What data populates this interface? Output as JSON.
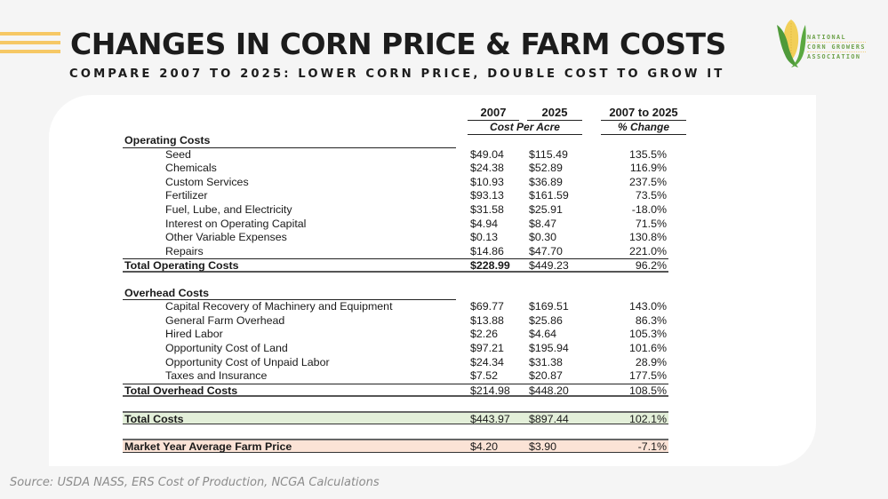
{
  "header": {
    "title": "CHANGES IN CORN PRICE & FARM COSTS",
    "subtitle": "COMPARE 2007 TO 2025: LOWER CORN PRICE, DOUBLE COST TO GROW IT",
    "logo": {
      "icon": "corn-cob-icon",
      "lines": [
        "NATIONAL",
        "CORN GROWERS",
        "ASSOCIATION"
      ],
      "colors": {
        "green": "#4f9a3a",
        "yellow": "#f2cf58"
      }
    },
    "accent_color": "#f6c865"
  },
  "table": {
    "col_headers": {
      "y2007": "2007",
      "y2025": "2025",
      "change_range": "2007 to 2025",
      "cost_per_acre": "Cost Per Acre",
      "pct_change": "% Change"
    },
    "operating": {
      "title": "Operating Costs",
      "rows": [
        {
          "label": "Seed",
          "v2007": "$49.04",
          "v2025": "$115.49",
          "pct": "135.5%"
        },
        {
          "label": "Chemicals",
          "v2007": "$24.38",
          "v2025": "$52.89",
          "pct": "116.9%"
        },
        {
          "label": "Custom Services",
          "v2007": "$10.93",
          "v2025": "$36.89",
          "pct": "237.5%"
        },
        {
          "label": "Fertilizer",
          "v2007": "$93.13",
          "v2025": "$161.59",
          "pct": "73.5%"
        },
        {
          "label": "Fuel, Lube, and Electricity",
          "v2007": "$31.58",
          "v2025": "$25.91",
          "pct": "-18.0%"
        },
        {
          "label": "Interest on Operating Capital",
          "v2007": "$4.94",
          "v2025": "$8.47",
          "pct": "71.5%"
        },
        {
          "label": "Other Variable Expenses",
          "v2007": "$0.13",
          "v2025": "$0.30",
          "pct": "130.8%"
        },
        {
          "label": "Repairs",
          "v2007": "$14.86",
          "v2025": "$47.70",
          "pct": "221.0%"
        }
      ],
      "total": {
        "label": "Total Operating Costs",
        "v2007": "$228.99",
        "v2025": "$449.23",
        "pct": "96.2%"
      }
    },
    "overhead": {
      "title": "Overhead Costs",
      "rows": [
        {
          "label": "Capital Recovery of Machinery and Equipment",
          "v2007": "$69.77",
          "v2025": "$169.51",
          "pct": "143.0%"
        },
        {
          "label": "General Farm Overhead",
          "v2007": "$13.88",
          "v2025": "$25.86",
          "pct": "86.3%"
        },
        {
          "label": "Hired Labor",
          "v2007": "$2.26",
          "v2025": "$4.64",
          "pct": "105.3%"
        },
        {
          "label": "Opportunity Cost of Land",
          "v2007": "$97.21",
          "v2025": "$195.94",
          "pct": "101.6%"
        },
        {
          "label": "Opportunity Cost of Unpaid Labor",
          "v2007": "$24.34",
          "v2025": "$31.38",
          "pct": "28.9%"
        },
        {
          "label": "Taxes and Insurance",
          "v2007": "$7.52",
          "v2025": "$20.87",
          "pct": "177.5%"
        }
      ],
      "total": {
        "label": "Total Overhead Costs",
        "v2007": "$214.98",
        "v2025": "$448.20",
        "pct": "108.5%"
      }
    },
    "total_costs": {
      "label": "Total Costs",
      "v2007": "$443.97",
      "v2025": "$897.44",
      "pct": "102.1%",
      "bg": "#e3efd9"
    },
    "farm_price": {
      "label": "Market Year Average Farm Price",
      "v2007": "$4.20",
      "v2025": "$3.90",
      "pct": "-7.1%",
      "bg": "#fbe3d6"
    }
  },
  "footer": {
    "source": "Source: USDA NASS, ERS Cost of Production, NCGA Calculations"
  }
}
